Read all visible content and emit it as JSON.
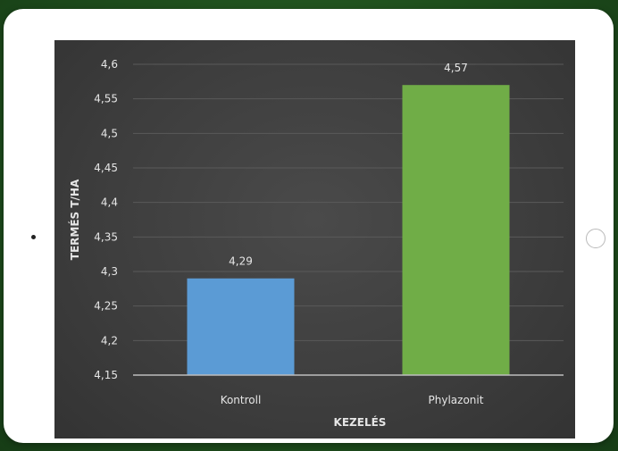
{
  "chart_data": {
    "type": "bar",
    "categories": [
      "Kontroll",
      "Phylazonit"
    ],
    "values": [
      4.29,
      4.57
    ],
    "data_labels": [
      "4,29",
      "4,57"
    ],
    "bar_colors": [
      "#5b9bd5",
      "#70ad47"
    ],
    "xlabel": "KEZELÉS",
    "ylabel": "TERMÉS T/HA",
    "ylim": [
      4.15,
      4.6
    ],
    "yticks": [
      4.15,
      4.2,
      4.25,
      4.3,
      4.35,
      4.4,
      4.45,
      4.5,
      4.55,
      4.6
    ],
    "ytick_labels": [
      "4,15",
      "4,2",
      "4,25",
      "4,3",
      "4,35",
      "4,4",
      "4,45",
      "4,5",
      "4,55",
      "4,6"
    ],
    "grid": true,
    "legend": "none"
  },
  "colors": {
    "background_green": "#2f6a2a",
    "plot_background": "#404040",
    "text": "#e6e6e6",
    "gridline": "#5a5a5a"
  }
}
